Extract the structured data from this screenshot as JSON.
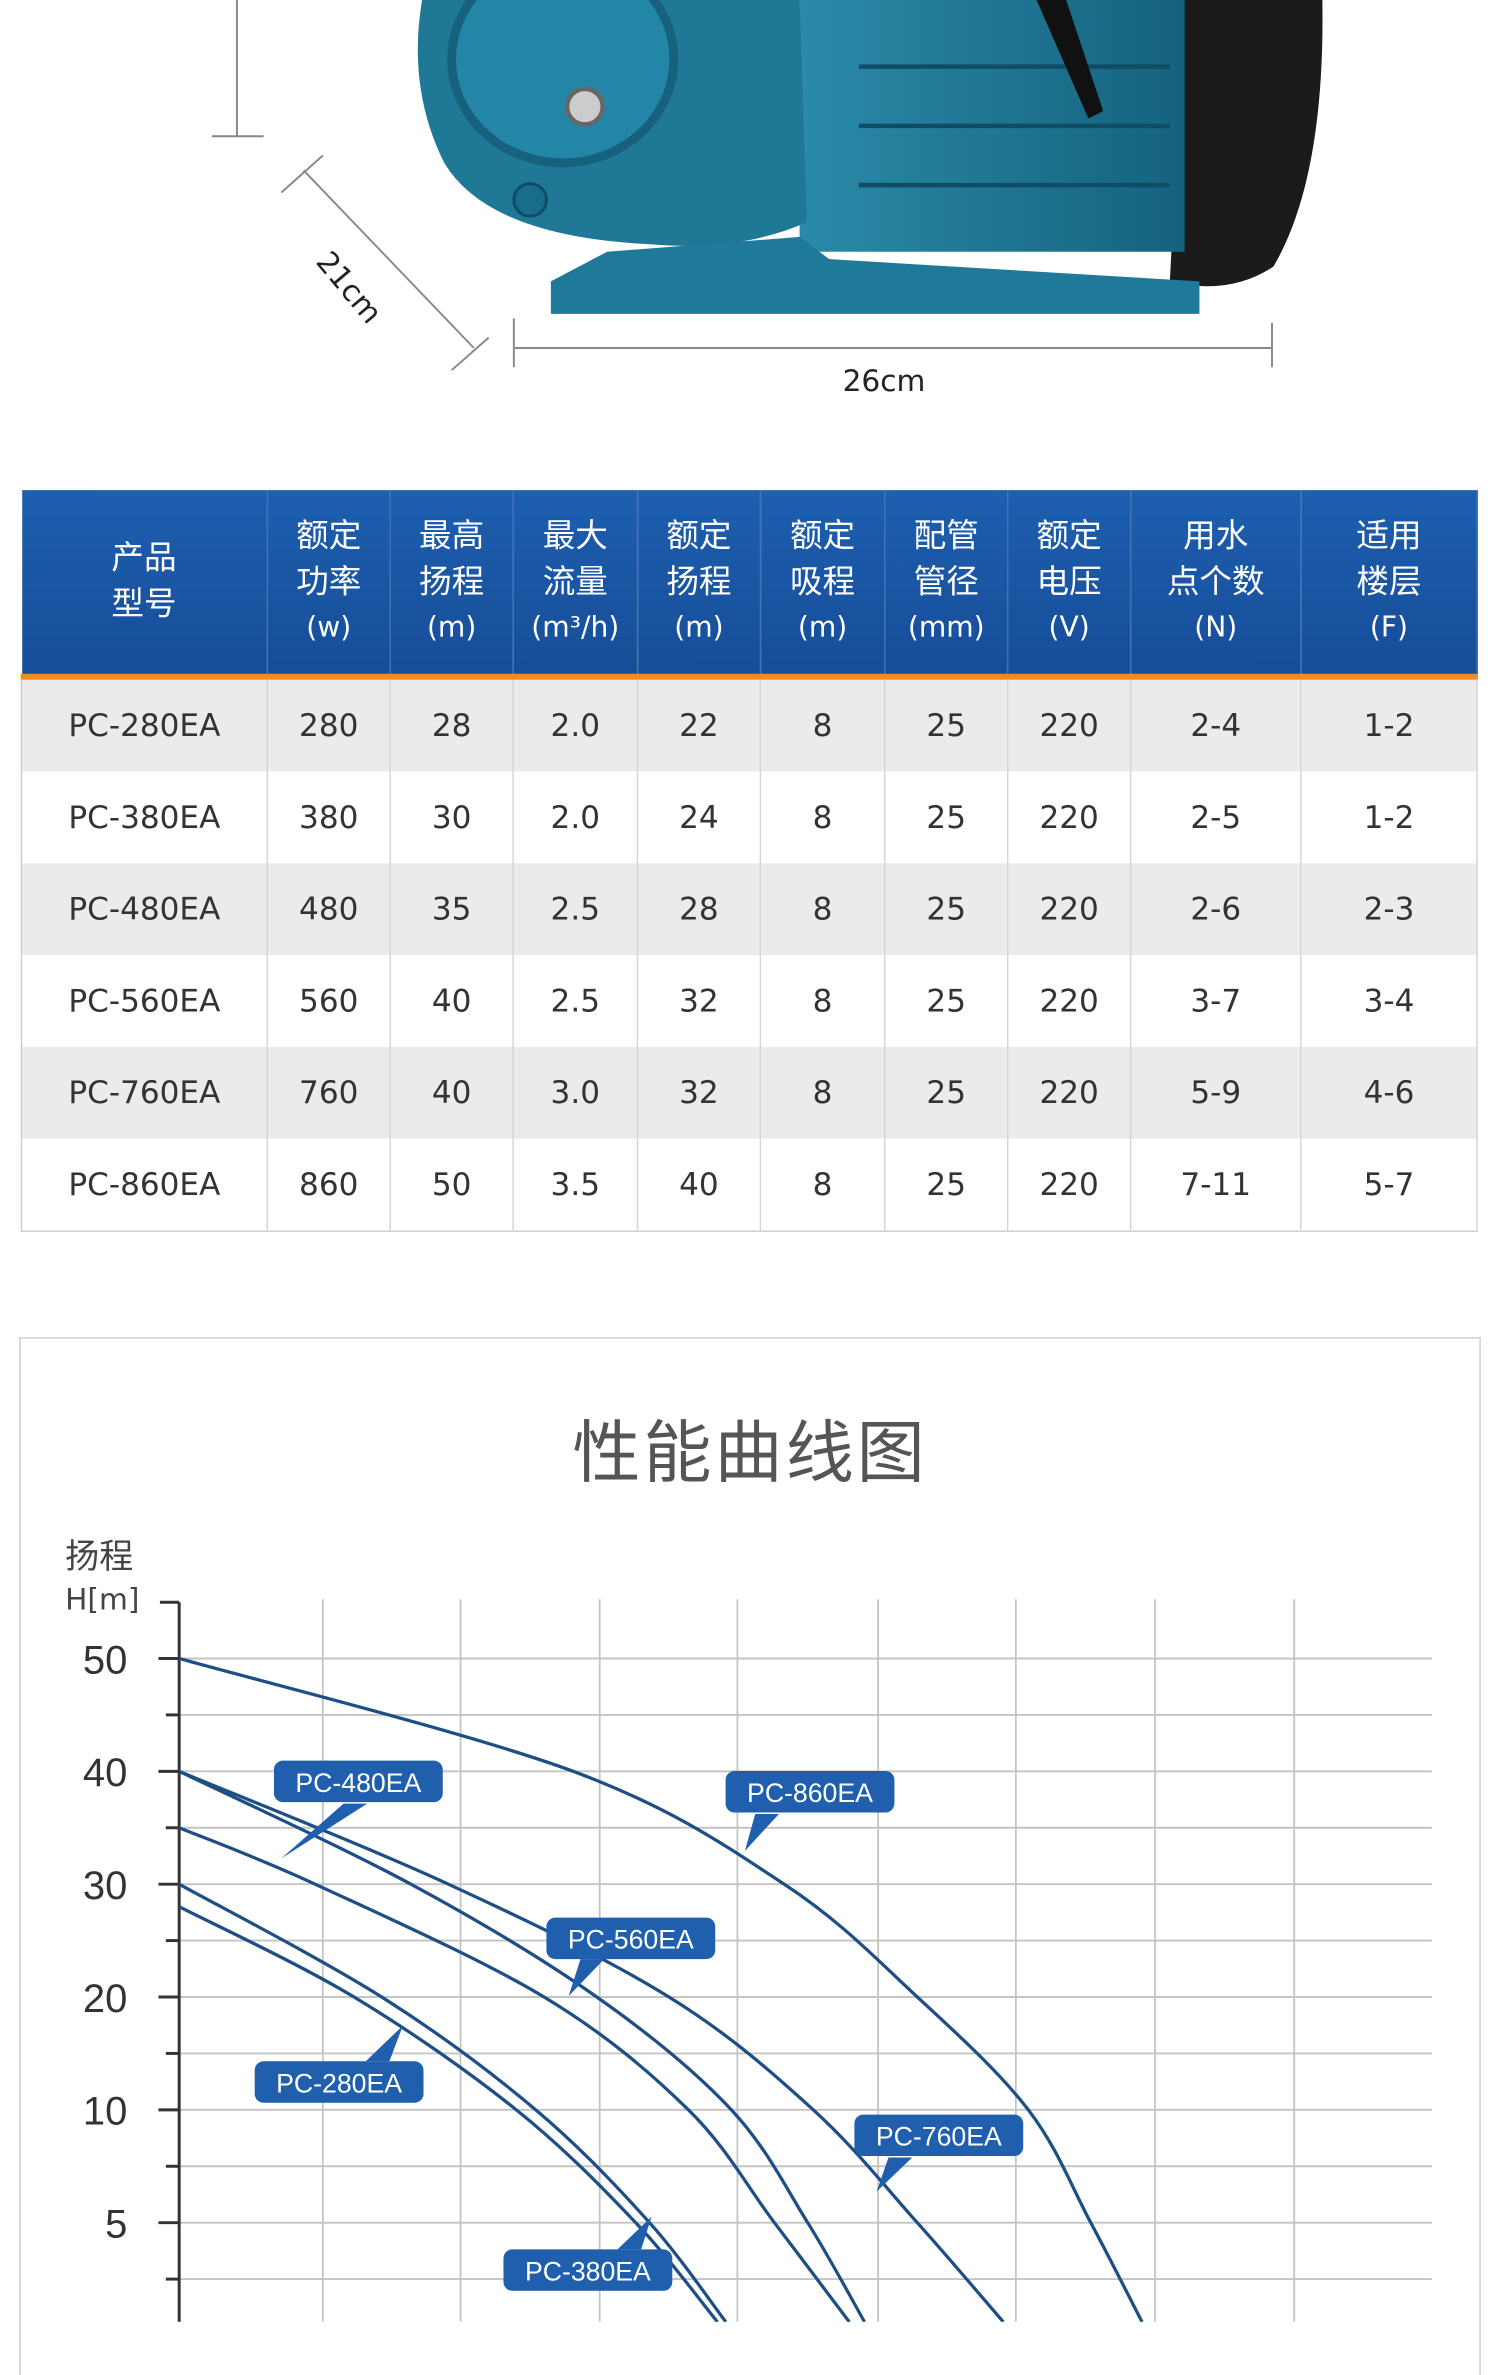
{
  "dimensions": {
    "depth": "21cm",
    "width": "26cm"
  },
  "table": {
    "headers": [
      {
        "name": "产品\n型号",
        "l1": "产品",
        "l2": "型号",
        "unit": ""
      },
      {
        "l1": "额定",
        "l2": "功率",
        "unit": "(w)"
      },
      {
        "l1": "最高",
        "l2": "扬程",
        "unit": "(m)"
      },
      {
        "l1": "最大",
        "l2": "流量",
        "unit": "(m³/h)"
      },
      {
        "l1": "额定",
        "l2": "扬程",
        "unit": "(m)"
      },
      {
        "l1": "额定",
        "l2": "吸程",
        "unit": "(m)"
      },
      {
        "l1": "配管",
        "l2": "管径",
        "unit": "(mm)"
      },
      {
        "l1": "额定",
        "l2": "电压",
        "unit": "(V)"
      },
      {
        "l1": "用水",
        "l2": "点个数",
        "unit": "(N)"
      },
      {
        "l1": "适用",
        "l2": "楼层",
        "unit": "(F)"
      }
    ],
    "rows": [
      [
        "PC-280EA",
        "280",
        "28",
        "2.0",
        "22",
        "8",
        "25",
        "220",
        "2-4",
        "1-2"
      ],
      [
        "PC-380EA",
        "380",
        "30",
        "2.0",
        "24",
        "8",
        "25",
        "220",
        "2-5",
        "1-2"
      ],
      [
        "PC-480EA",
        "480",
        "35",
        "2.5",
        "28",
        "8",
        "25",
        "220",
        "2-6",
        "2-3"
      ],
      [
        "PC-560EA",
        "560",
        "40",
        "2.5",
        "32",
        "8",
        "25",
        "220",
        "3-7",
        "3-4"
      ],
      [
        "PC-760EA",
        "760",
        "40",
        "3.0",
        "32",
        "8",
        "25",
        "220",
        "5-9",
        "4-6"
      ],
      [
        "PC-860EA",
        "860",
        "50",
        "3.5",
        "40",
        "8",
        "25",
        "220",
        "7-11",
        "5-7"
      ]
    ]
  },
  "chart_data": {
    "type": "line",
    "title": "性能曲线图",
    "ylabel": "扬程",
    "yunit": "H[m]",
    "xlabel": "",
    "yticks": [
      "50",
      "40",
      "30",
      "20",
      "10",
      "5"
    ],
    "y_tick_values": [
      50,
      40,
      30,
      20,
      10,
      5
    ],
    "x_grid_count": 9,
    "grid": true,
    "line_color": "#1d4f86",
    "label_color": "#1f5fae",
    "series": [
      {
        "name": "PC-280EA",
        "points": [
          [
            0,
            28
          ],
          [
            1.26,
            20
          ],
          [
            2.43,
            10
          ],
          [
            3.29,
            5
          ],
          [
            3.88,
            0.6
          ]
        ]
      },
      {
        "name": "PC-380EA",
        "points": [
          [
            0,
            30
          ],
          [
            1.46,
            20
          ],
          [
            2.57,
            10
          ],
          [
            3.39,
            5
          ],
          [
            3.94,
            0.6
          ]
        ]
      },
      {
        "name": "PC-480EA",
        "points": [
          [
            0,
            35
          ],
          [
            0.98,
            30
          ],
          [
            2.63,
            20
          ],
          [
            3.67,
            10
          ],
          [
            4.29,
            5
          ],
          [
            4.83,
            0.6
          ]
        ]
      },
      {
        "name": "PC-560EA",
        "points": [
          [
            0,
            40
          ],
          [
            1.67,
            30
          ],
          [
            3.01,
            20
          ],
          [
            3.98,
            10
          ],
          [
            4.53,
            5
          ],
          [
            4.94,
            0.6
          ]
        ]
      },
      {
        "name": "PC-760EA",
        "points": [
          [
            0,
            40
          ],
          [
            1.94,
            30
          ],
          [
            3.53,
            20
          ],
          [
            4.57,
            10
          ],
          [
            5.32,
            5
          ],
          [
            5.94,
            0.6
          ]
        ]
      },
      {
        "name": "PC-860EA",
        "points": [
          [
            0,
            50
          ],
          [
            2.84,
            40
          ],
          [
            4.36,
            30
          ],
          [
            5.32,
            20
          ],
          [
            6.12,
            10
          ],
          [
            6.57,
            5
          ],
          [
            6.94,
            0.6
          ]
        ]
      }
    ]
  }
}
